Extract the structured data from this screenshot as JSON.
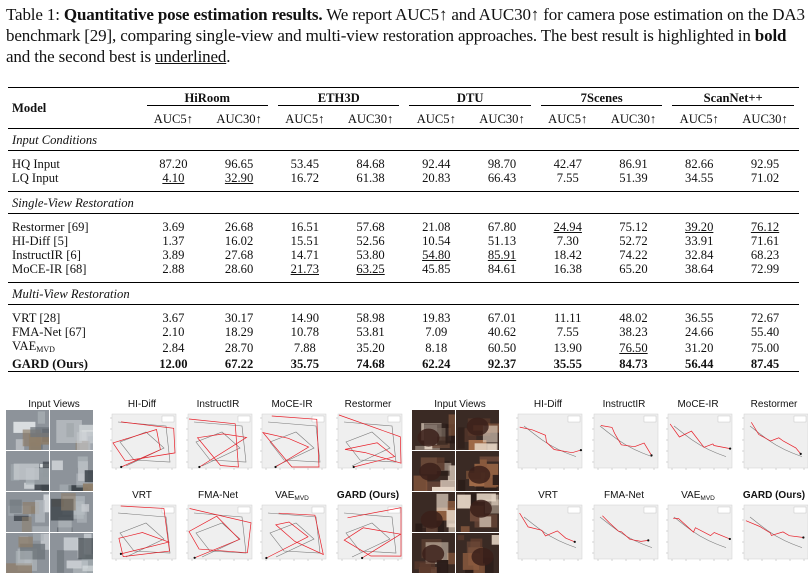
{
  "caption": {
    "label": "Table 1:",
    "bold_title": "Quantitative pose estimation results.",
    "text_a": " We report AUC5↑ and AUC30↑ for camera pose estimation on the DA3 benchmark [29], comparing single-view and multi-view restoration approaches. The best result is highlighted in ",
    "bold_word": "bold",
    "text_b": " and the second best is ",
    "underlined_word": "underlined",
    "text_c": "."
  },
  "table": {
    "model_header": "Model",
    "datasets": [
      "HiRoom",
      "ETH3D",
      "DTU",
      "7Scenes",
      "ScanNet++"
    ],
    "metrics": [
      "AUC5↑",
      "AUC30↑"
    ],
    "sections": [
      {
        "title": "Input Conditions",
        "rows": [
          {
            "model": "HQ Input",
            "values": [
              "87.20",
              "96.65",
              "53.45",
              "84.68",
              "92.44",
              "98.70",
              "42.47",
              "86.91",
              "82.66",
              "92.95"
            ],
            "underline": []
          },
          {
            "model": "LQ Input",
            "values": [
              "4.10",
              "32.90",
              "16.72",
              "61.38",
              "20.83",
              "66.43",
              "7.55",
              "51.39",
              "34.55",
              "71.02"
            ],
            "underline": [
              0,
              1
            ]
          }
        ]
      },
      {
        "title": "Single-View Restoration",
        "rows": [
          {
            "model": "Restormer [69]",
            "values": [
              "3.69",
              "26.68",
              "16.51",
              "57.68",
              "21.08",
              "67.80",
              "24.94",
              "75.12",
              "39.20",
              "76.12"
            ],
            "underline": [
              6,
              8,
              9
            ]
          },
          {
            "model": "HI-Diff [5]",
            "values": [
              "1.37",
              "16.02",
              "15.51",
              "52.56",
              "10.54",
              "51.13",
              "7.30",
              "52.72",
              "33.91",
              "71.61"
            ],
            "underline": []
          },
          {
            "model": "InstructIR [6]",
            "values": [
              "3.89",
              "27.68",
              "14.71",
              "53.80",
              "54.80",
              "85.91",
              "18.42",
              "74.22",
              "32.84",
              "68.23"
            ],
            "underline": [
              4,
              5
            ]
          },
          {
            "model": "MoCE-IR [68]",
            "values": [
              "2.88",
              "28.60",
              "21.73",
              "63.25",
              "45.85",
              "84.61",
              "16.38",
              "65.20",
              "38.64",
              "72.99"
            ],
            "underline": [
              2,
              3
            ]
          }
        ]
      },
      {
        "title": "Multi-View Restoration",
        "rows": [
          {
            "model": "VRT [28]",
            "values": [
              "3.67",
              "30.17",
              "14.90",
              "58.98",
              "19.83",
              "67.01",
              "11.11",
              "48.02",
              "36.55",
              "72.67"
            ],
            "underline": []
          },
          {
            "model": "FMA-Net [67]",
            "values": [
              "2.10",
              "18.29",
              "10.78",
              "53.81",
              "7.09",
              "40.62",
              "7.55",
              "38.23",
              "24.66",
              "55.40"
            ],
            "underline": []
          },
          {
            "model": "VAE",
            "model_sub": "MVD",
            "values": [
              "2.84",
              "28.70",
              "7.88",
              "35.20",
              "8.18",
              "60.50",
              "13.90",
              "76.50",
              "31.20",
              "75.00"
            ],
            "underline": [
              7
            ]
          },
          {
            "model": "GARD (Ours)",
            "values": [
              "12.00",
              "67.22",
              "35.75",
              "74.68",
              "62.24",
              "92.37",
              "35.55",
              "84.73",
              "56.44",
              "87.45"
            ],
            "underline": [],
            "bold": true
          }
        ]
      }
    ]
  },
  "figure": {
    "left": {
      "input_label": "Input Views",
      "top_labels": [
        "HI-Diff",
        "InstructIR",
        "MoCE-IR",
        "Restormer"
      ],
      "bottom_labels": [
        "VRT",
        "FMA-Net",
        "VAE",
        "GARD (Ours)"
      ],
      "vae_sub": "MVD"
    },
    "right": {
      "input_label": "Input Views",
      "top_labels": [
        "HI-Diff",
        "InstructIR",
        "MoCE-IR",
        "Restormer"
      ],
      "bottom_labels": [
        "VRT",
        "FMA-Net",
        "VAE",
        "GARD (Ours)"
      ],
      "vae_sub": "MVD"
    },
    "colors": {
      "trajectory": "#e8202a",
      "ground_truth": "#7a7a7a",
      "plot_bg": "#efefef"
    }
  }
}
